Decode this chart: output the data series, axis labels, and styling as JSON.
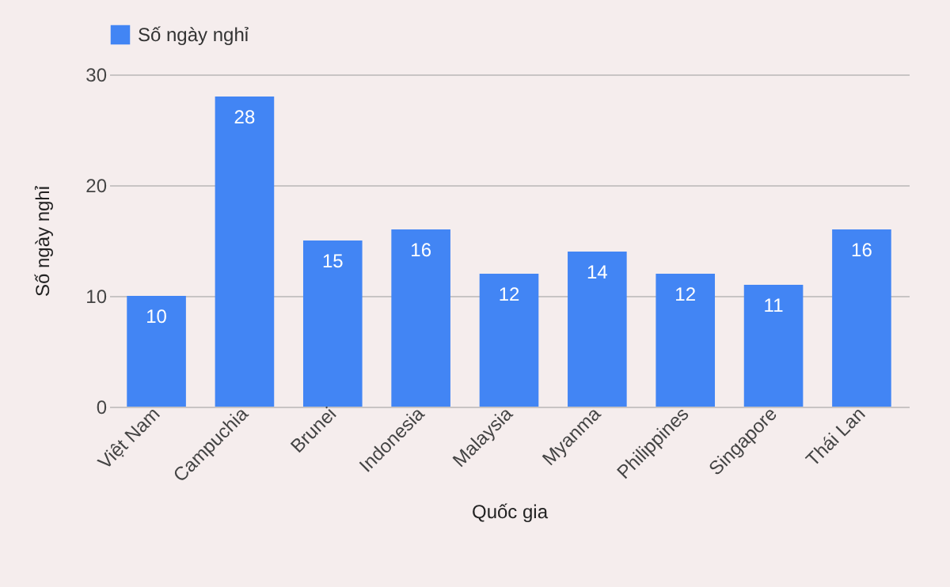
{
  "chart_data": {
    "type": "bar",
    "xlabel": "Quốc gia",
    "ylabel": "Số ngày nghỉ",
    "categories": [
      "Việt Nam",
      "Campuchia",
      "Brunei",
      "Indonesia",
      "Malaysia",
      "Myanma",
      "Philippines",
      "Singapore",
      "Thái Lan"
    ],
    "series": [
      {
        "name": "Số ngày nghỉ",
        "color": "#4285f4",
        "values": [
          10,
          28,
          15,
          16,
          12,
          14,
          12,
          11,
          16
        ]
      }
    ],
    "ylim": [
      0,
      30
    ],
    "yticks": [
      0,
      10,
      20,
      30
    ],
    "grid": "y",
    "legend": "top",
    "data_labels": true
  }
}
